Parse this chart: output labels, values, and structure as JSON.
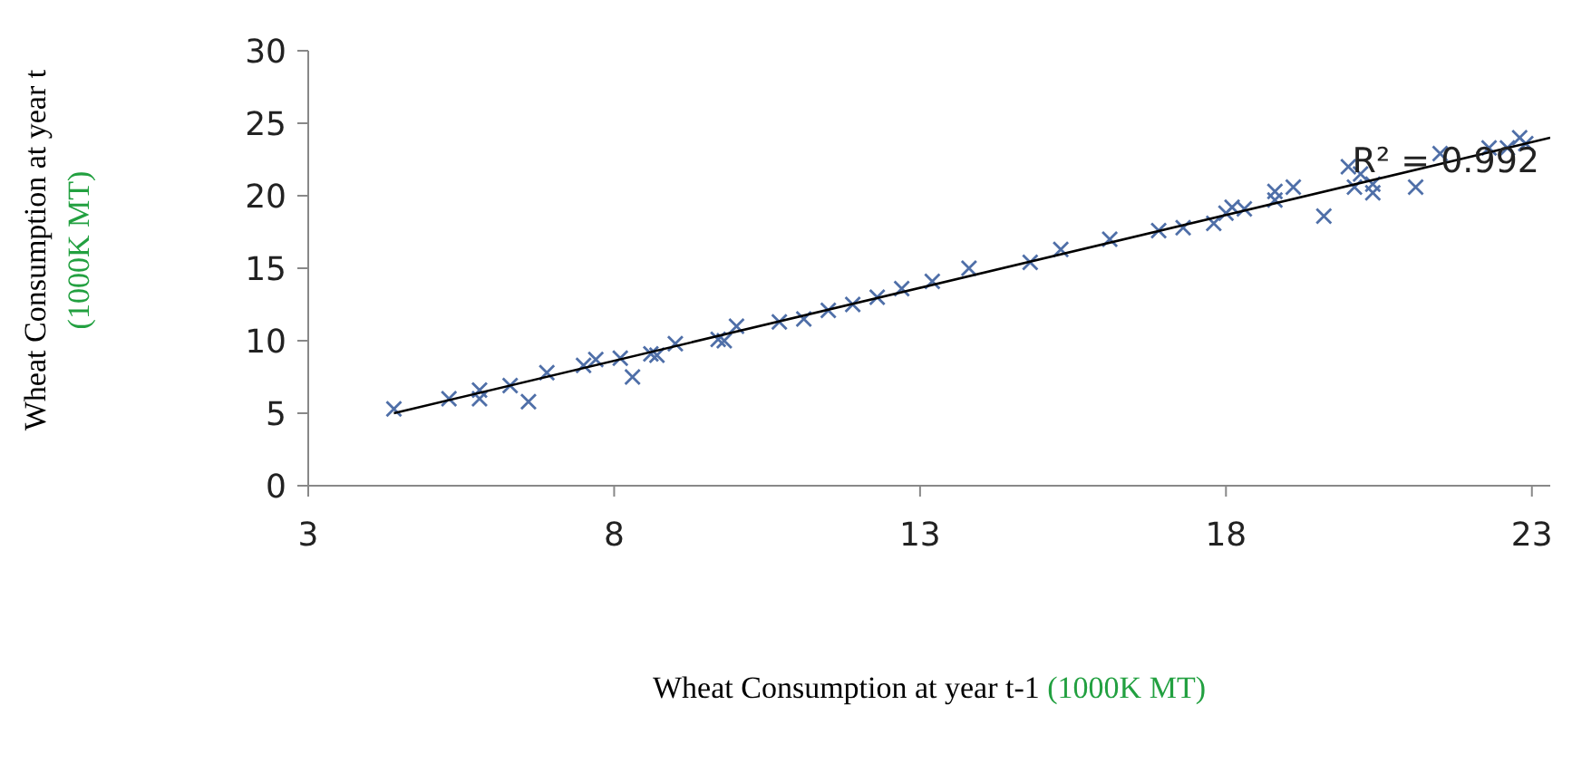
{
  "chart_data": {
    "type": "scatter",
    "xlabel": "Wheat Consumption at year t-1 (1000K MT)",
    "ylabel": "Wheat Consumption at year t (1000K MT)",
    "annotations": [
      "R² = 0.992"
    ],
    "xlim": [
      3,
      23.3
    ],
    "xticks": [
      3,
      8,
      13,
      18,
      23
    ],
    "ylim": [
      0,
      30
    ],
    "yticks": [
      0,
      5,
      10,
      15,
      20,
      25,
      30
    ],
    "grid": false,
    "series": [
      {
        "marker": "cross",
        "color": "#4f6fa8",
        "x": [
          4.4,
          5.3,
          5.8,
          5.8,
          6.3,
          6.6,
          6.9,
          7.5,
          7.7,
          8.1,
          8.3,
          8.6,
          8.7,
          9.0,
          9.7,
          9.8,
          10.0,
          10.7,
          11.1,
          11.5,
          11.9,
          12.3,
          12.7,
          13.2,
          13.8,
          14.8,
          15.3,
          16.1,
          16.9,
          17.3,
          17.8,
          18.0,
          18.1,
          18.3,
          18.8,
          18.8,
          19.1,
          19.6,
          20.0,
          20.1,
          20.2,
          20.4,
          20.4,
          21.1,
          21.5,
          22.3,
          22.6,
          22.8,
          22.9
        ],
        "values": [
          5.3,
          6.0,
          6.6,
          6.0,
          6.9,
          5.8,
          7.8,
          8.3,
          8.7,
          8.8,
          7.5,
          9.1,
          9.0,
          9.8,
          10.1,
          10.0,
          11.0,
          11.3,
          11.5,
          12.1,
          12.5,
          13.0,
          13.6,
          14.1,
          15.0,
          15.4,
          16.3,
          17.0,
          17.6,
          17.8,
          18.1,
          18.8,
          19.2,
          19.1,
          19.7,
          20.3,
          20.6,
          18.6,
          22.0,
          20.6,
          21.5,
          20.8,
          20.2,
          20.6,
          22.9,
          23.3,
          23.3,
          24.0,
          23.6
        ]
      },
      {
        "type": "line",
        "marker": "none",
        "color": "#000000",
        "x": [
          4.4,
          23.3
        ],
        "values": [
          5.0,
          24.0
        ]
      }
    ]
  }
}
